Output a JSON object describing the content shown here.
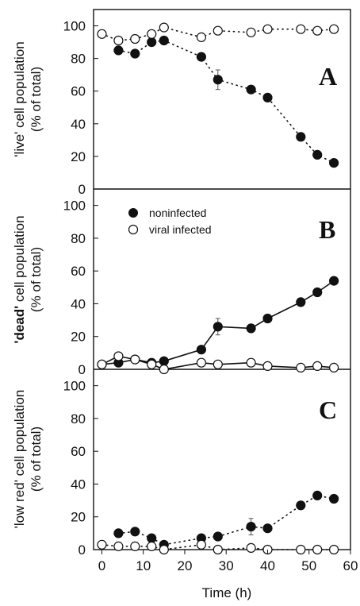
{
  "chart_data": [
    {
      "type": "scatter",
      "panel_label": "A",
      "ylabel_line1": "'live' cell population",
      "ylabel_line2": "(% of total)",
      "ylim": [
        0,
        110
      ],
      "yticks": [
        "0",
        "20",
        "40",
        "60",
        "80",
        "100"
      ],
      "series": [
        {
          "name": "noninfected",
          "marker": "filled",
          "line": "dotted",
          "x": [
            4,
            8,
            12,
            15,
            24,
            28,
            36,
            40,
            48,
            52,
            56
          ],
          "y": [
            85,
            83,
            90,
            91,
            81,
            67,
            61,
            56,
            32,
            21,
            16
          ],
          "error_bars": [
            {
              "x": 28,
              "err": 6
            }
          ]
        },
        {
          "name": "viral infected",
          "marker": "open",
          "line": "dotted",
          "x": [
            0,
            4,
            8,
            12,
            15,
            24,
            28,
            36,
            40,
            48,
            52,
            56
          ],
          "y": [
            95,
            91,
            92,
            95,
            99,
            93,
            97,
            96,
            98,
            98,
            97,
            98
          ]
        }
      ]
    },
    {
      "type": "line",
      "panel_label": "B",
      "ylabel_line1_bold": "'dead'",
      "ylabel_line1_rest": " cell population",
      "ylabel_line2": "(% of total)",
      "ylim": [
        0,
        110
      ],
      "yticks": [
        "0",
        "20",
        "40",
        "60",
        "80",
        "100"
      ],
      "legend": {
        "position": "top-left",
        "items": [
          "noninfected",
          "viral infected"
        ]
      },
      "series": [
        {
          "name": "noninfected",
          "marker": "filled",
          "line": "solid",
          "x": [
            0,
            4,
            8,
            12,
            15,
            24,
            28,
            36,
            40,
            48,
            52,
            56
          ],
          "y": [
            3,
            4,
            6,
            4,
            5,
            12,
            26,
            25,
            31,
            41,
            47,
            54
          ],
          "error_bars": [
            {
              "x": 28,
              "err": 5
            }
          ]
        },
        {
          "name": "viral infected",
          "marker": "open",
          "line": "solid",
          "x": [
            0,
            4,
            8,
            12,
            15,
            24,
            28,
            36,
            40,
            48,
            52,
            56
          ],
          "y": [
            3,
            8,
            6,
            3,
            0,
            4,
            3,
            4,
            2,
            1,
            2,
            1
          ]
        }
      ]
    },
    {
      "type": "scatter",
      "panel_label": "C",
      "ylabel_line1": "'low red' cell population",
      "ylabel_line2": "(% of total)",
      "ylim": [
        0,
        110
      ],
      "yticks": [
        "0",
        "20",
        "40",
        "60",
        "80",
        "100"
      ],
      "xlabel": "Time (h)",
      "xlim": [
        -2,
        60
      ],
      "xticks": [
        "0",
        "10",
        "20",
        "30",
        "40",
        "50",
        "60"
      ],
      "series": [
        {
          "name": "noninfected",
          "marker": "filled",
          "line": "dotted",
          "x": [
            4,
            8,
            12,
            15,
            24,
            28,
            36,
            40,
            48,
            52,
            56
          ],
          "y": [
            10,
            11,
            7,
            3,
            7,
            8,
            14,
            13,
            27,
            33,
            31
          ],
          "error_bars": [
            {
              "x": 36,
              "err": 5
            }
          ]
        },
        {
          "name": "viral infected",
          "marker": "open",
          "line": "dotted",
          "x": [
            0,
            4,
            8,
            12,
            15,
            24,
            28,
            36,
            40,
            48,
            52,
            56
          ],
          "y": [
            3,
            2,
            2,
            2,
            0,
            3,
            0,
            1,
            0,
            0,
            0,
            0
          ]
        }
      ]
    }
  ]
}
